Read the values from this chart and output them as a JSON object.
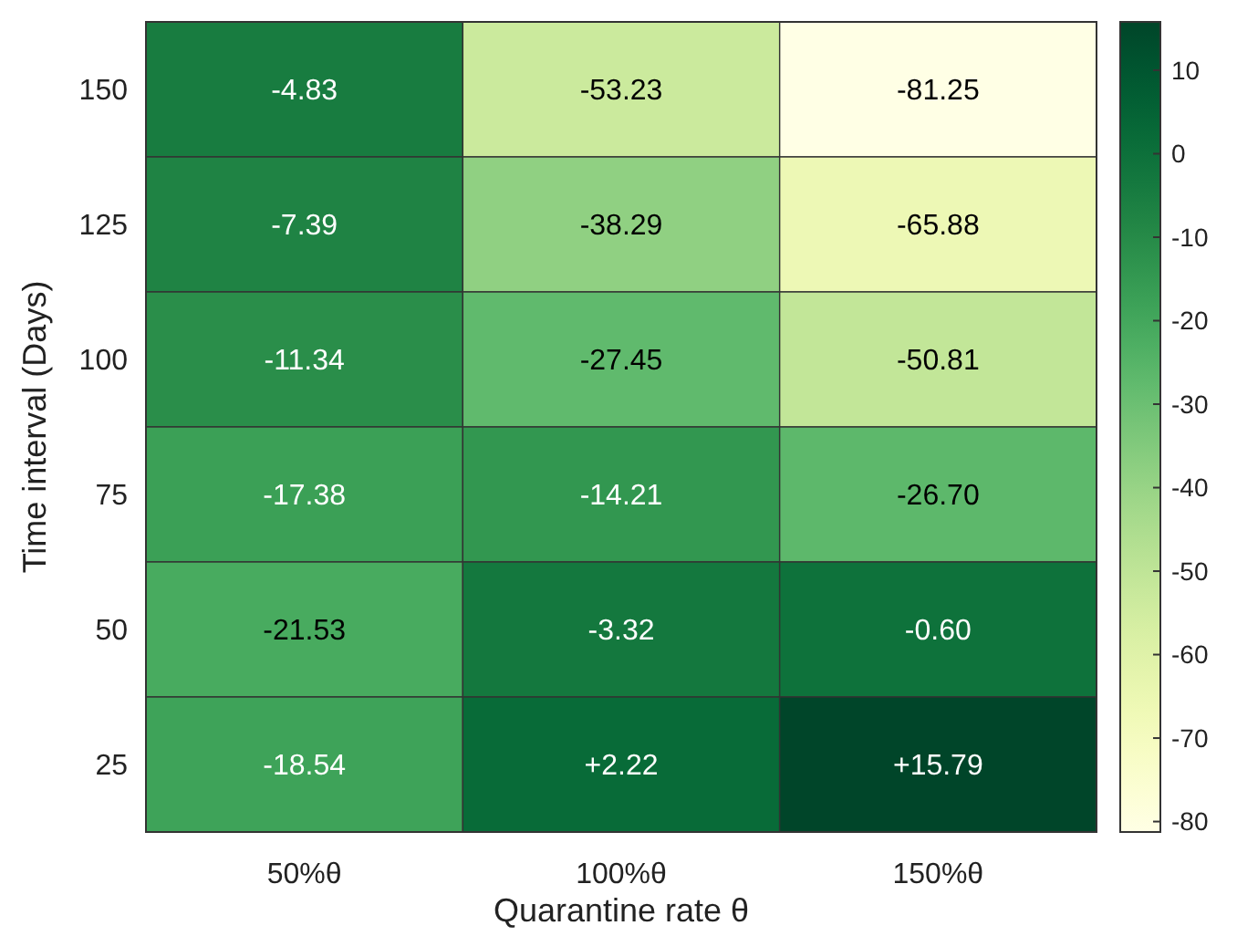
{
  "chart_data": {
    "type": "heatmap",
    "xlabel": "Quarantine rate θ",
    "ylabel": "Time interval (Days)",
    "categories": [
      "50%θ",
      "100%θ",
      "150%θ"
    ],
    "y_categories": [
      "150",
      "125",
      "100",
      "75",
      "50",
      "25"
    ],
    "cells": [
      [
        -4.83,
        -53.23,
        -81.25
      ],
      [
        -7.39,
        -38.29,
        -65.88
      ],
      [
        -11.34,
        -27.45,
        -50.81
      ],
      [
        -17.38,
        -14.21,
        -26.7
      ],
      [
        -21.53,
        -3.32,
        -0.6
      ],
      [
        -18.54,
        2.22,
        15.79
      ]
    ],
    "cell_labels": [
      [
        "-4.83",
        "-53.23",
        "-81.25"
      ],
      [
        "-7.39",
        "-38.29",
        "-65.88"
      ],
      [
        "-11.34",
        "-27.45",
        "-50.81"
      ],
      [
        "-17.38",
        "-14.21",
        "-26.70"
      ],
      [
        "-21.53",
        "-3.32",
        "-0.60"
      ],
      [
        "-18.54",
        "+2.22",
        "+15.79"
      ]
    ],
    "clim": [
      -81.25,
      15.79
    ],
    "cticks": [
      10,
      0,
      -10,
      -20,
      -30,
      -40,
      -50,
      -60,
      -70,
      -80
    ]
  }
}
